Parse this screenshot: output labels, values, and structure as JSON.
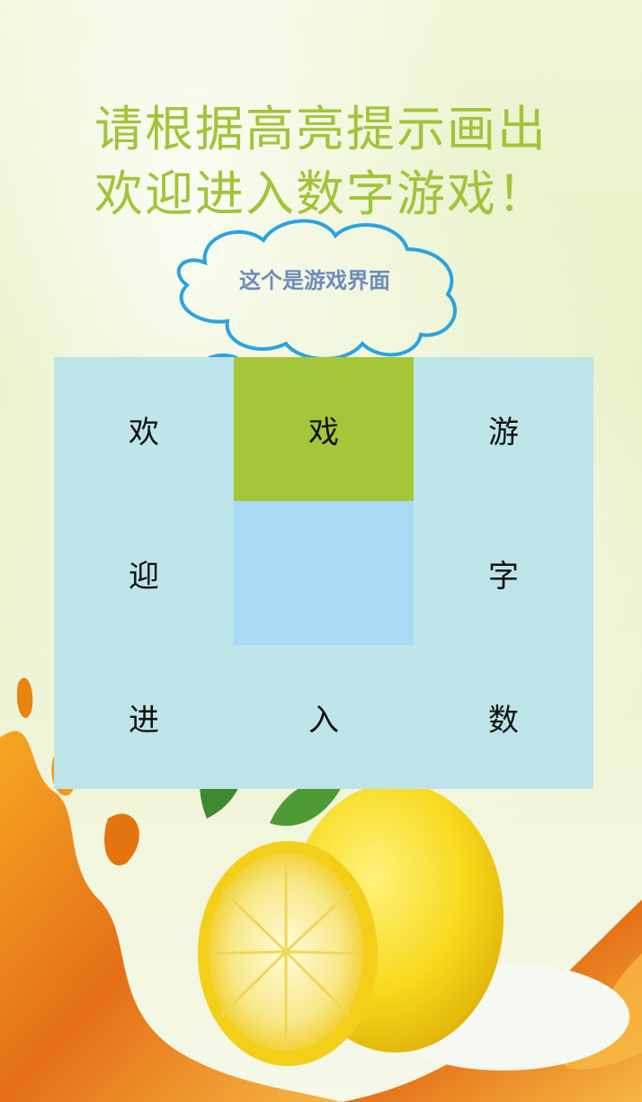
{
  "header": {
    "instruction": "请根据高亮提示画出",
    "target_phrase": "欢迎进入数字游戏！"
  },
  "tooltip": {
    "text": "这个是游戏界面"
  },
  "grid": {
    "cells": [
      {
        "char": "欢",
        "state": "normal"
      },
      {
        "char": "戏",
        "state": "highlight"
      },
      {
        "char": "游",
        "state": "normal"
      },
      {
        "char": "迎",
        "state": "normal"
      },
      {
        "char": "",
        "state": "selected"
      },
      {
        "char": "字",
        "state": "normal"
      },
      {
        "char": "进",
        "state": "normal"
      },
      {
        "char": "入",
        "state": "normal"
      },
      {
        "char": "数",
        "state": "normal"
      }
    ]
  },
  "colors": {
    "title": "#a2c43a",
    "grid_bg": "#bde4e9",
    "highlight": "#a6c63a",
    "selected": "#a8daf5",
    "cloud_stroke": "#2aa3e0",
    "cloud_text": "#6e8bbf"
  }
}
